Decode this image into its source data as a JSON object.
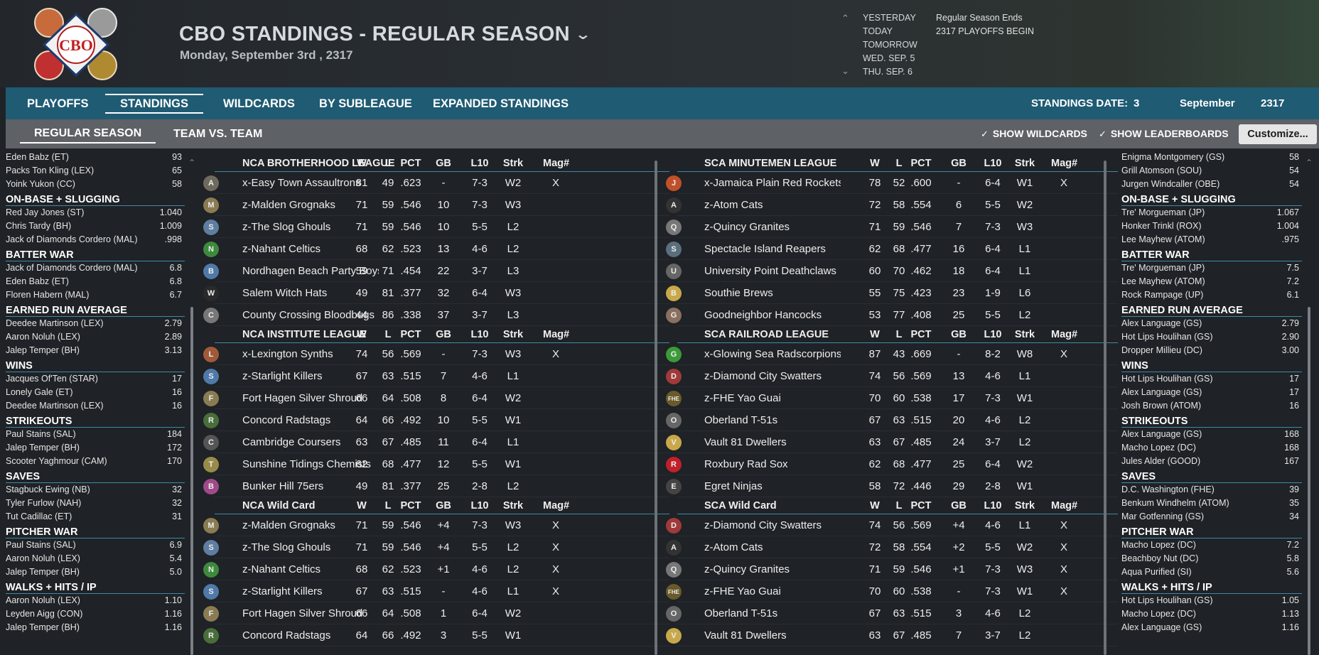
{
  "header": {
    "title": "CBO STANDINGS - REGULAR SEASON",
    "date": "Monday, September 3rd , 2317",
    "logo_text": "CBO",
    "date_nav": [
      "YESTERDAY",
      "TODAY",
      "TOMORROW",
      "WED. SEP. 5",
      "THU. SEP. 6"
    ],
    "season_note": [
      "Regular Season Ends",
      "2317 PLAYOFFS BEGIN"
    ]
  },
  "nav": {
    "tabs": [
      "PLAYOFFS",
      "STANDINGS",
      "WILDCARDS",
      "BY SUBLEAGUE",
      "EXPANDED STANDINGS"
    ],
    "active": "STANDINGS",
    "standings_date_label": "STANDINGS DATE:",
    "day": "3",
    "month": "September",
    "year": "2317"
  },
  "subnav": {
    "tabs": [
      "REGULAR SEASON",
      "TEAM VS. TEAM"
    ],
    "show_wildcards": "SHOW WILDCARDS",
    "show_leaderboards": "SHOW LEADERBOARDS",
    "customize": "Customize..."
  },
  "left_leaders": [
    {
      "category": "",
      "rows": [
        [
          "Eden Babz (ET)",
          "93"
        ],
        [
          "Packs Ton Kling (LEX)",
          "65"
        ],
        [
          "Yoink Yukon (CC)",
          "58"
        ]
      ]
    },
    {
      "category": "ON-BASE + SLUGGING",
      "rows": [
        [
          "Red Jay Jones (ST)",
          "1.040"
        ],
        [
          "Chris Tardy (BH)",
          "1.009"
        ],
        [
          "Jack of Diamonds Cordero (MAL)",
          ".998"
        ]
      ]
    },
    {
      "category": "BATTER WAR",
      "rows": [
        [
          "Jack of Diamonds Cordero (MAL)",
          "6.8"
        ],
        [
          "Eden Babz (ET)",
          "6.8"
        ],
        [
          "Floren Habern (MAL)",
          "6.7"
        ]
      ]
    },
    {
      "category": "EARNED RUN AVERAGE",
      "rows": [
        [
          "Deedee Martinson (LEX)",
          "2.79"
        ],
        [
          "Aaron Noluh (LEX)",
          "2.89"
        ],
        [
          "Jalep Temper (BH)",
          "3.13"
        ]
      ]
    },
    {
      "category": "WINS",
      "rows": [
        [
          "Jacques Of'Ten (STAR)",
          "17"
        ],
        [
          "Lonely Gale (ET)",
          "16"
        ],
        [
          "Deedee Martinson (LEX)",
          "16"
        ]
      ]
    },
    {
      "category": "STRIKEOUTS",
      "rows": [
        [
          "Paul Stains (SAL)",
          "184"
        ],
        [
          "Jalep Temper (BH)",
          "172"
        ],
        [
          "Scooter Yaghmour (CAM)",
          "170"
        ]
      ]
    },
    {
      "category": "SAVES",
      "rows": [
        [
          "Stagbuck Ewing (NB)",
          "32"
        ],
        [
          "Tyler Furlow (NAH)",
          "32"
        ],
        [
          "Tut Cadillac (ET)",
          "31"
        ]
      ]
    },
    {
      "category": "PITCHER WAR",
      "rows": [
        [
          "Paul Stains (SAL)",
          "6.9"
        ],
        [
          "Aaron Noluh (LEX)",
          "5.4"
        ],
        [
          "Jalep Temper (BH)",
          "5.0"
        ]
      ]
    },
    {
      "category": "WALKS + HITS / IP",
      "rows": [
        [
          "Aaron Noluh (LEX)",
          "1.10"
        ],
        [
          "Leyden Aigg (CON)",
          "1.16"
        ],
        [
          "Jalep Temper (BH)",
          "1.16"
        ]
      ]
    }
  ],
  "right_leaders": [
    {
      "category": "",
      "rows": [
        [
          "Enigma Montgomery (GS)",
          "58"
        ],
        [
          "Grill Atomson (SOU)",
          "54"
        ],
        [
          "Jurgen Windcaller (OBE)",
          "54"
        ]
      ]
    },
    {
      "category": "ON-BASE + SLUGGING",
      "rows": [
        [
          "Tre' Morgueman (JP)",
          "1.067"
        ],
        [
          "Honker Trinkl (ROX)",
          "1.004"
        ],
        [
          "Lee Mayhew (ATOM)",
          ".975"
        ]
      ]
    },
    {
      "category": "BATTER WAR",
      "rows": [
        [
          "Tre' Morgueman (JP)",
          "7.5"
        ],
        [
          "Lee Mayhew (ATOM)",
          "7.2"
        ],
        [
          "Rock Rampage (UP)",
          "6.1"
        ]
      ]
    },
    {
      "category": "EARNED RUN AVERAGE",
      "rows": [
        [
          "Alex Language (GS)",
          "2.79"
        ],
        [
          "Hot Lips Houlihan (GS)",
          "2.90"
        ],
        [
          "Dropper Millieu (DC)",
          "3.00"
        ]
      ]
    },
    {
      "category": "WINS",
      "rows": [
        [
          "Hot Lips Houlihan (GS)",
          "17"
        ],
        [
          "Alex Language (GS)",
          "17"
        ],
        [
          "Josh Brown (ATOM)",
          "16"
        ]
      ]
    },
    {
      "category": "STRIKEOUTS",
      "rows": [
        [
          "Alex Language (GS)",
          "168"
        ],
        [
          "Macho Lopez (DC)",
          "168"
        ],
        [
          "Jules Alder (GOOD)",
          "167"
        ]
      ]
    },
    {
      "category": "SAVES",
      "rows": [
        [
          "D.C. Washington (FHE)",
          "39"
        ],
        [
          "Benkum Windhelm (ATOM)",
          "35"
        ],
        [
          "Mar Gotfenning (GS)",
          "34"
        ]
      ]
    },
    {
      "category": "PITCHER WAR",
      "rows": [
        [
          "Macho Lopez (DC)",
          "7.2"
        ],
        [
          "Beachboy Nut (DC)",
          "5.8"
        ],
        [
          "Aqua Purified (SI)",
          "5.6"
        ]
      ]
    },
    {
      "category": "WALKS + HITS / IP",
      "rows": [
        [
          "Hot Lips Houlihan (GS)",
          "1.05"
        ],
        [
          "Macho Lopez (DC)",
          "1.13"
        ],
        [
          "Alex Language (GS)",
          "1.16"
        ]
      ]
    }
  ],
  "columns": [
    "W",
    "L",
    "PCT",
    "GB",
    "L10",
    "Strk",
    "Mag#"
  ],
  "nca": [
    {
      "league": "NCA BROTHERHOOD LEAGUE",
      "teams": [
        {
          "name": "x-Easy Town Assaultrons",
          "w": "81",
          "l": "49",
          "pct": ".623",
          "gb": "-",
          "l10": "7-3",
          "strk": "W2",
          "mag": "X",
          "icon": "A",
          "color": "#6e6a5e"
        },
        {
          "name": "z-Malden Grognaks",
          "w": "71",
          "l": "59",
          "pct": ".546",
          "gb": "10",
          "l10": "7-3",
          "strk": "W3",
          "mag": "",
          "icon": "M",
          "color": "#8a7b52"
        },
        {
          "name": "z-The Slog Ghouls",
          "w": "71",
          "l": "59",
          "pct": ".546",
          "gb": "10",
          "l10": "5-5",
          "strk": "L2",
          "mag": "",
          "icon": "S",
          "color": "#5d7ea0"
        },
        {
          "name": "z-Nahant Celtics",
          "w": "68",
          "l": "62",
          "pct": ".523",
          "gb": "13",
          "l10": "4-6",
          "strk": "L2",
          "mag": "",
          "icon": "N",
          "color": "#3d8a3d"
        },
        {
          "name": "Nordhagen Beach Party Boys",
          "w": "59",
          "l": "71",
          "pct": ".454",
          "gb": "22",
          "l10": "3-7",
          "strk": "L3",
          "mag": "",
          "icon": "B",
          "color": "#4f79a8"
        },
        {
          "name": "Salem Witch Hats",
          "w": "49",
          "l": "81",
          "pct": ".377",
          "gb": "32",
          "l10": "6-4",
          "strk": "W3",
          "mag": "",
          "icon": "W",
          "color": "#2a2a2a"
        },
        {
          "name": "County Crossing Bloodbugs",
          "w": "44",
          "l": "86",
          "pct": ".338",
          "gb": "37",
          "l10": "3-7",
          "strk": "L3",
          "mag": "",
          "icon": "C",
          "color": "#777777"
        }
      ]
    },
    {
      "league": "NCA INSTITUTE LEAGUE",
      "teams": [
        {
          "name": "x-Lexington Synths",
          "w": "74",
          "l": "56",
          "pct": ".569",
          "gb": "-",
          "l10": "7-3",
          "strk": "W3",
          "mag": "X",
          "icon": "L",
          "color": "#a05a3a"
        },
        {
          "name": "z-Starlight Killers",
          "w": "67",
          "l": "63",
          "pct": ".515",
          "gb": "7",
          "l10": "4-6",
          "strk": "L1",
          "mag": "",
          "icon": "S",
          "color": "#4f79a8"
        },
        {
          "name": "Fort Hagen Silver Shroud",
          "w": "66",
          "l": "64",
          "pct": ".508",
          "gb": "8",
          "l10": "6-4",
          "strk": "W2",
          "mag": "",
          "icon": "F",
          "color": "#8a7b52"
        },
        {
          "name": "Concord Radstags",
          "w": "64",
          "l": "66",
          "pct": ".492",
          "gb": "10",
          "l10": "5-5",
          "strk": "W1",
          "mag": "",
          "icon": "R",
          "color": "#4a6e3a"
        },
        {
          "name": "Cambridge Coursers",
          "w": "63",
          "l": "67",
          "pct": ".485",
          "gb": "11",
          "l10": "6-4",
          "strk": "L1",
          "mag": "",
          "icon": "C",
          "color": "#555555"
        },
        {
          "name": "Sunshine Tidings Chemists",
          "w": "62",
          "l": "68",
          "pct": ".477",
          "gb": "12",
          "l10": "5-5",
          "strk": "W1",
          "mag": "",
          "icon": "T",
          "color": "#9a8a4a"
        },
        {
          "name": "Bunker Hill 75ers",
          "w": "49",
          "l": "81",
          "pct": ".377",
          "gb": "25",
          "l10": "2-8",
          "strk": "L2",
          "mag": "",
          "icon": "B",
          "color": "#a04a8a"
        }
      ]
    },
    {
      "league": "NCA  Wild Card",
      "teams": [
        {
          "name": "z-Malden Grognaks",
          "w": "71",
          "l": "59",
          "pct": ".546",
          "gb": "+4",
          "l10": "7-3",
          "strk": "W3",
          "mag": "X",
          "icon": "M",
          "color": "#8a7b52"
        },
        {
          "name": "z-The Slog Ghouls",
          "w": "71",
          "l": "59",
          "pct": ".546",
          "gb": "+4",
          "l10": "5-5",
          "strk": "L2",
          "mag": "X",
          "icon": "S",
          "color": "#5d7ea0"
        },
        {
          "name": "z-Nahant Celtics",
          "w": "68",
          "l": "62",
          "pct": ".523",
          "gb": "+1",
          "l10": "4-6",
          "strk": "L2",
          "mag": "X",
          "icon": "N",
          "color": "#3d8a3d"
        },
        {
          "name": "z-Starlight Killers",
          "w": "67",
          "l": "63",
          "pct": ".515",
          "gb": "-",
          "l10": "4-6",
          "strk": "L1",
          "mag": "X",
          "icon": "S",
          "color": "#4f79a8"
        },
        {
          "name": "Fort Hagen Silver Shroud",
          "w": "66",
          "l": "64",
          "pct": ".508",
          "gb": "1",
          "l10": "6-4",
          "strk": "W2",
          "mag": "",
          "icon": "F",
          "color": "#8a7b52"
        },
        {
          "name": "Concord Radstags",
          "w": "64",
          "l": "66",
          "pct": ".492",
          "gb": "3",
          "l10": "5-5",
          "strk": "W1",
          "mag": "",
          "icon": "R",
          "color": "#4a6e3a"
        }
      ]
    }
  ],
  "sca": [
    {
      "league": "SCA MINUTEMEN LEAGUE",
      "teams": [
        {
          "name": "x-Jamaica Plain Red Rockets",
          "w": "78",
          "l": "52",
          "pct": ".600",
          "gb": "-",
          "l10": "6-4",
          "strk": "W1",
          "mag": "X",
          "icon": "J",
          "color": "#c0502a"
        },
        {
          "name": "z-Atom Cats",
          "w": "72",
          "l": "58",
          "pct": ".554",
          "gb": "6",
          "l10": "5-5",
          "strk": "W2",
          "mag": "",
          "icon": "A",
          "color": "#333333"
        },
        {
          "name": "z-Quincy Granites",
          "w": "71",
          "l": "59",
          "pct": ".546",
          "gb": "7",
          "l10": "7-3",
          "strk": "W3",
          "mag": "",
          "icon": "Q",
          "color": "#777777"
        },
        {
          "name": "Spectacle Island Reapers",
          "w": "62",
          "l": "68",
          "pct": ".477",
          "gb": "16",
          "l10": "6-4",
          "strk": "L1",
          "mag": "",
          "icon": "S",
          "color": "#5a6e7e"
        },
        {
          "name": "University Point Deathclaws",
          "w": "60",
          "l": "70",
          "pct": ".462",
          "gb": "18",
          "l10": "6-4",
          "strk": "L1",
          "mag": "",
          "icon": "U",
          "color": "#666666"
        },
        {
          "name": "Southie Brews",
          "w": "55",
          "l": "75",
          "pct": ".423",
          "gb": "23",
          "l10": "1-9",
          "strk": "L6",
          "mag": "",
          "icon": "B",
          "color": "#c8a84a"
        },
        {
          "name": "Goodneighbor Hancocks",
          "w": "53",
          "l": "77",
          "pct": ".408",
          "gb": "25",
          "l10": "5-5",
          "strk": "L2",
          "mag": "",
          "icon": "G",
          "color": "#8a7060"
        }
      ]
    },
    {
      "league": "SCA RAILROAD LEAGUE",
      "teams": [
        {
          "name": "x-Glowing Sea Radscorpions",
          "w": "87",
          "l": "43",
          "pct": ".669",
          "gb": "-",
          "l10": "8-2",
          "strk": "W8",
          "mag": "X",
          "icon": "G",
          "color": "#3a9a3a"
        },
        {
          "name": "z-Diamond City Swatters",
          "w": "74",
          "l": "56",
          "pct": ".569",
          "gb": "13",
          "l10": "4-6",
          "strk": "L1",
          "mag": "",
          "icon": "D",
          "color": "#a03a3a"
        },
        {
          "name": "z-FHE Yao Guai",
          "w": "70",
          "l": "60",
          "pct": ".538",
          "gb": "17",
          "l10": "7-3",
          "strk": "W1",
          "mag": "",
          "icon": "FHE",
          "color": "#6a5a2a"
        },
        {
          "name": "Oberland T-51s",
          "w": "67",
          "l": "63",
          "pct": ".515",
          "gb": "20",
          "l10": "4-6",
          "strk": "L2",
          "mag": "",
          "icon": "O",
          "color": "#666666"
        },
        {
          "name": "Vault 81 Dwellers",
          "w": "63",
          "l": "67",
          "pct": ".485",
          "gb": "24",
          "l10": "3-7",
          "strk": "L2",
          "mag": "",
          "icon": "V",
          "color": "#c8a84a"
        },
        {
          "name": "Roxbury Rad Sox",
          "w": "62",
          "l": "68",
          "pct": ".477",
          "gb": "25",
          "l10": "6-4",
          "strk": "W2",
          "mag": "",
          "icon": "R",
          "color": "#c0202a"
        },
        {
          "name": "Egret Ninjas",
          "w": "58",
          "l": "72",
          "pct": ".446",
          "gb": "29",
          "l10": "2-8",
          "strk": "W1",
          "mag": "",
          "icon": "E",
          "color": "#444444"
        }
      ]
    },
    {
      "league": "SCA  Wild Card",
      "teams": [
        {
          "name": "z-Diamond City Swatters",
          "w": "74",
          "l": "56",
          "pct": ".569",
          "gb": "+4",
          "l10": "4-6",
          "strk": "L1",
          "mag": "X",
          "icon": "D",
          "color": "#a03a3a"
        },
        {
          "name": "z-Atom Cats",
          "w": "72",
          "l": "58",
          "pct": ".554",
          "gb": "+2",
          "l10": "5-5",
          "strk": "W2",
          "mag": "X",
          "icon": "A",
          "color": "#333333"
        },
        {
          "name": "z-Quincy Granites",
          "w": "71",
          "l": "59",
          "pct": ".546",
          "gb": "+1",
          "l10": "7-3",
          "strk": "W3",
          "mag": "X",
          "icon": "Q",
          "color": "#777777"
        },
        {
          "name": "z-FHE Yao Guai",
          "w": "70",
          "l": "60",
          "pct": ".538",
          "gb": "-",
          "l10": "7-3",
          "strk": "W1",
          "mag": "X",
          "icon": "FHE",
          "color": "#6a5a2a"
        },
        {
          "name": "Oberland T-51s",
          "w": "67",
          "l": "63",
          "pct": ".515",
          "gb": "3",
          "l10": "4-6",
          "strk": "L2",
          "mag": "",
          "icon": "O",
          "color": "#666666"
        },
        {
          "name": "Vault 81 Dwellers",
          "w": "63",
          "l": "67",
          "pct": ".485",
          "gb": "7",
          "l10": "3-7",
          "strk": "L2",
          "mag": "",
          "icon": "V",
          "color": "#c8a84a"
        }
      ]
    }
  ]
}
